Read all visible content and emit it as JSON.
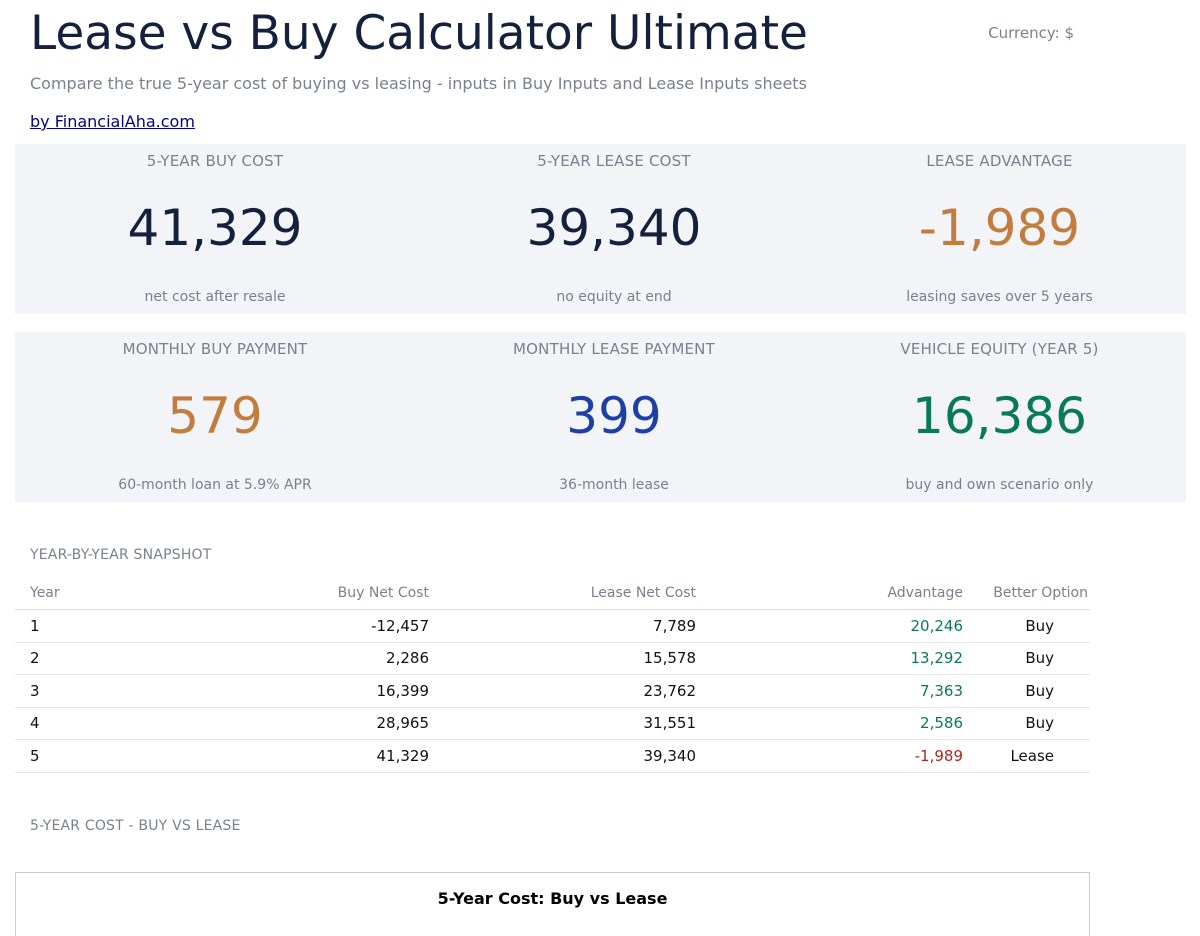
{
  "header": {
    "title": "Lease vs Buy Calculator Ultimate",
    "currency": "Currency: $",
    "subtitle": "Compare the true 5-year cost of buying vs leasing - inputs in Buy Inputs and Lease Inputs sheets",
    "byline": "by FinancialAha.com"
  },
  "kpis": [
    {
      "label": "5-YEAR BUY COST",
      "value": "41,329",
      "note": "net cost after resale",
      "color": "#14213d"
    },
    {
      "label": "5-YEAR LEASE COST",
      "value": "39,340",
      "note": "no equity at end",
      "color": "#14213d"
    },
    {
      "label": "LEASE ADVANTAGE",
      "value": "-1,989",
      "note": "leasing saves over 5 years",
      "color": "#c27c3e"
    },
    {
      "label": "MONTHLY BUY PAYMENT",
      "value": "579",
      "note": "60-month loan at 5.9% APR",
      "color": "#c27c3e"
    },
    {
      "label": "MONTHLY LEASE PAYMENT",
      "value": "399",
      "note": "36-month lease",
      "color": "#1f3fa8"
    },
    {
      "label": "VEHICLE EQUITY (YEAR 5)",
      "value": "16,386",
      "note": "buy and own scenario only",
      "color": "#0a7a55"
    }
  ],
  "snapshot": {
    "section_title": "YEAR-BY-YEAR SNAPSHOT",
    "columns": [
      "Year",
      "Buy Net Cost",
      "Lease Net Cost",
      "Advantage",
      "Better Option"
    ],
    "rows": [
      {
        "year": "1",
        "buy": "-12,457",
        "lease": "7,789",
        "advantage": "20,246",
        "option": "Buy"
      },
      {
        "year": "2",
        "buy": "2,286",
        "lease": "15,578",
        "advantage": "13,292",
        "option": "Buy"
      },
      {
        "year": "3",
        "buy": "16,399",
        "lease": "23,762",
        "advantage": "7,363",
        "option": "Buy"
      },
      {
        "year": "4",
        "buy": "28,965",
        "lease": "31,551",
        "advantage": "2,586",
        "option": "Buy"
      },
      {
        "year": "5",
        "buy": "41,329",
        "lease": "39,340",
        "advantage": "-1,989",
        "option": "Lease"
      }
    ],
    "positive_color": "#0a7a55",
    "negative_color": "#b3261e"
  },
  "chart_section": {
    "section_title": "5-YEAR COST - BUY VS LEASE",
    "chart_title": "5-Year Cost: Buy vs Lease"
  }
}
